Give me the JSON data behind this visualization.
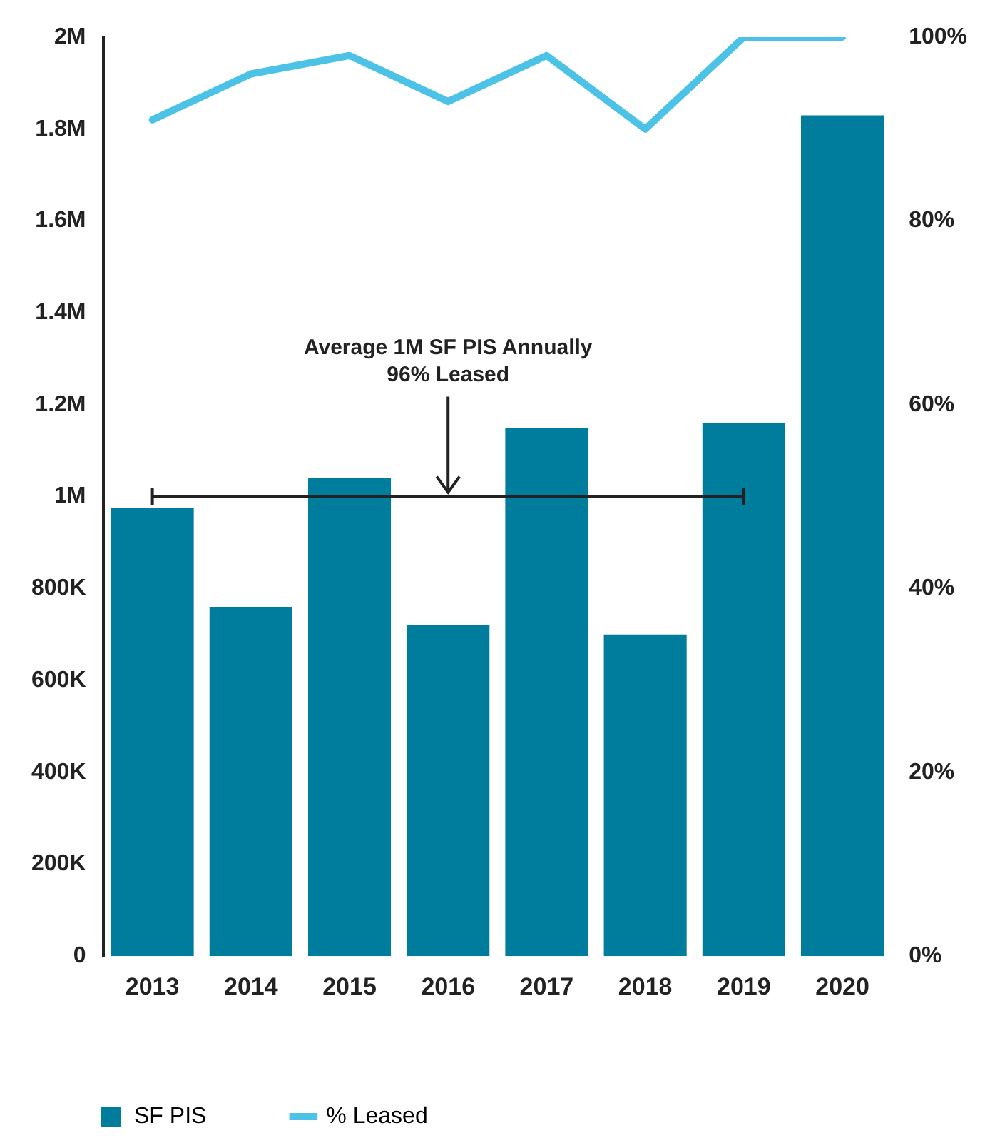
{
  "chart_data": {
    "type": "bar",
    "categories": [
      "2013",
      "2014",
      "2015",
      "2016",
      "2017",
      "2018",
      "2019",
      "2020"
    ],
    "series": [
      {
        "name": "SF PIS",
        "color": "#007c9c",
        "values": [
          975000,
          760000,
          1040000,
          720000,
          1150000,
          700000,
          1160000,
          1830000
        ]
      },
      {
        "name": "% Leased",
        "type": "line",
        "axis": "y2",
        "color": "#4cc3e6",
        "values": [
          91,
          96,
          98,
          93,
          98,
          90,
          100,
          100
        ]
      }
    ],
    "ylim": [
      0,
      2000000
    ],
    "yticks": [
      {
        "value": 0,
        "label": "0"
      },
      {
        "value": 200000,
        "label": "200K"
      },
      {
        "value": 400000,
        "label": "400K"
      },
      {
        "value": 600000,
        "label": "600K"
      },
      {
        "value": 800000,
        "label": "800K"
      },
      {
        "value": 1000000,
        "label": "1M"
      },
      {
        "value": 1200000,
        "label": "1.2M"
      },
      {
        "value": 1400000,
        "label": "1.4M"
      },
      {
        "value": 1600000,
        "label": "1.6M"
      },
      {
        "value": 1800000,
        "label": "1.8M"
      },
      {
        "value": 2000000,
        "label": "2M"
      }
    ],
    "y2lim": [
      0,
      100
    ],
    "y2ticks": [
      {
        "value": 0,
        "label": "0%"
      },
      {
        "value": 20,
        "label": "20%"
      },
      {
        "value": 40,
        "label": "40%"
      },
      {
        "value": 60,
        "label": "60%"
      },
      {
        "value": 80,
        "label": "80%"
      },
      {
        "value": 100,
        "label": "100%"
      }
    ],
    "ref_lines": [
      {
        "axis": "y",
        "value": 1000000,
        "color": "#222222"
      }
    ],
    "annotations": [
      {
        "text": "Average 1M SF PIS Annually\n96% Leased",
        "x": "2016",
        "y": 1000000
      }
    ],
    "grid": false,
    "legend": "bottom",
    "marker": "none",
    "line_style": "solid"
  }
}
